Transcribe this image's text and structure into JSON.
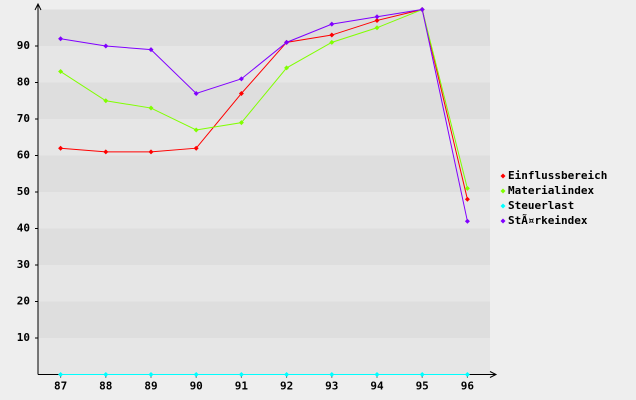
{
  "chart_data": {
    "type": "line",
    "categories": [
      "87",
      "88",
      "89",
      "90",
      "91",
      "92",
      "93",
      "94",
      "95",
      "96"
    ],
    "series": [
      {
        "name": "Einflussbereich",
        "color": "#ff0000",
        "values": [
          62,
          61,
          61,
          62,
          77,
          91,
          93,
          97,
          100,
          48
        ]
      },
      {
        "name": "Materialindex",
        "color": "#80ff00",
        "values": [
          83,
          75,
          73,
          67,
          69,
          84,
          91,
          95,
          100,
          51
        ]
      },
      {
        "name": "Steuerlast",
        "color": "#00ffff",
        "values": [
          0,
          0,
          0,
          0,
          0,
          0,
          0,
          0,
          0,
          0
        ]
      },
      {
        "name": "StÃ¤rkeindex",
        "color": "#8000ff",
        "values": [
          92,
          90,
          89,
          77,
          81,
          91,
          96,
          98,
          100,
          42
        ]
      }
    ],
    "ylim": [
      0,
      100
    ],
    "yticks": [
      10,
      20,
      30,
      40,
      50,
      60,
      70,
      80,
      90
    ],
    "grid": true,
    "legend": "right"
  }
}
